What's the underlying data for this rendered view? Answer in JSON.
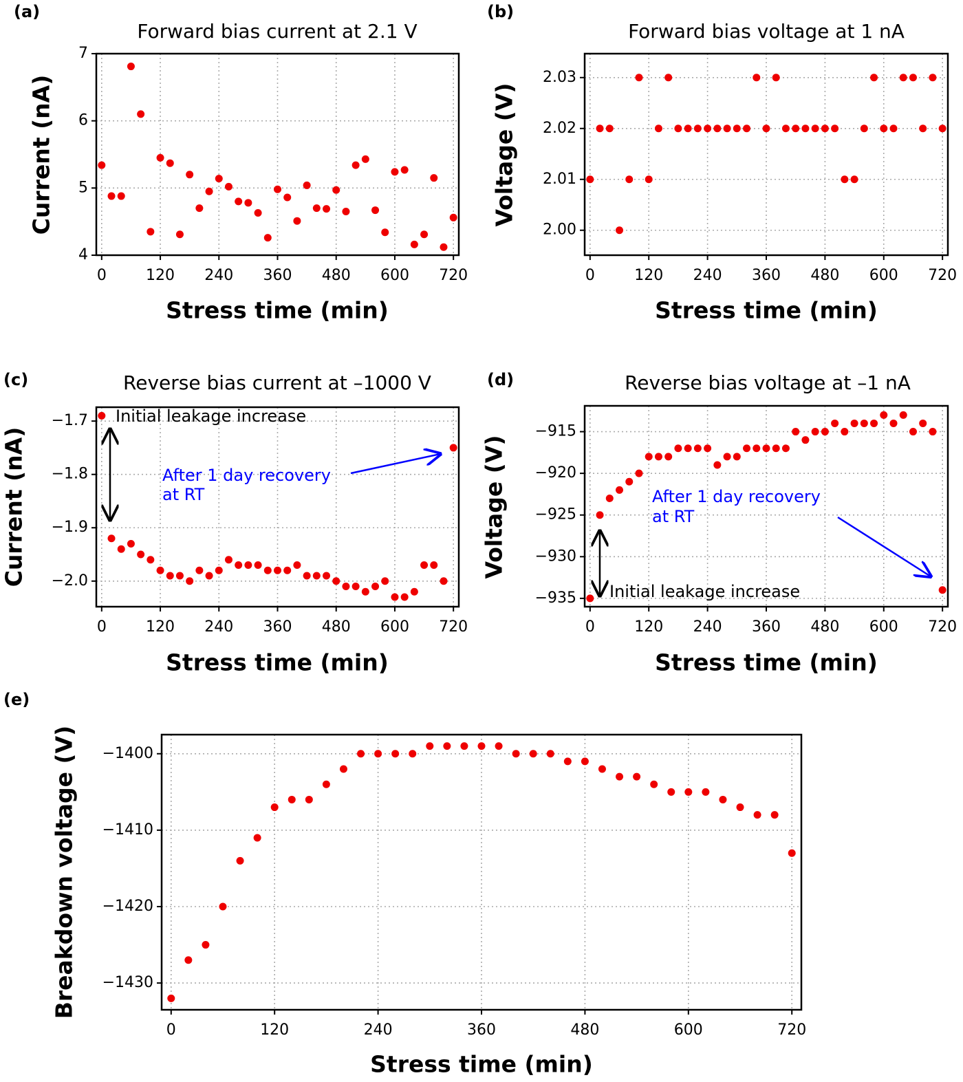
{
  "chart_data": [
    {
      "type": "scatter",
      "panel_label": "(a)",
      "title": "Forward bias current at 2.1 V",
      "xlabel": "Stress time (min)",
      "ylabel": "Current (nA)",
      "color": "#ee0000",
      "grid": true,
      "x": [
        0,
        20,
        40,
        60,
        80,
        100,
        120,
        140,
        160,
        180,
        200,
        220,
        240,
        260,
        280,
        300,
        320,
        340,
        360,
        380,
        400,
        420,
        440,
        460,
        480,
        500,
        520,
        540,
        560,
        580,
        600,
        620,
        640,
        660,
        680,
        700,
        720
      ],
      "values": [
        5.34,
        4.88,
        4.88,
        6.81,
        6.1,
        4.35,
        5.45,
        5.37,
        4.31,
        5.2,
        4.7,
        4.95,
        5.14,
        5.02,
        4.8,
        4.78,
        4.63,
        4.26,
        4.98,
        4.86,
        4.51,
        5.04,
        4.7,
        4.69,
        4.97,
        4.65,
        5.34,
        5.43,
        4.67,
        4.34,
        5.24,
        5.27,
        4.16,
        4.31,
        5.15,
        4.12,
        4.56
      ],
      "xlim": [
        -11,
        731
      ],
      "xticks": [
        0,
        120,
        240,
        360,
        480,
        600,
        720
      ],
      "ylim": [
        4,
        7
      ],
      "yticks": [
        4,
        5,
        6,
        7
      ]
    },
    {
      "type": "scatter",
      "panel_label": "(b)",
      "title": "Forward bias voltage at 1 nA",
      "xlabel": "Stress time (min)",
      "ylabel": "Voltage (V)",
      "color": "#ee0000",
      "grid": true,
      "x": [
        0,
        20,
        40,
        60,
        80,
        100,
        120,
        140,
        160,
        180,
        200,
        220,
        240,
        260,
        280,
        300,
        320,
        340,
        360,
        380,
        400,
        420,
        440,
        460,
        480,
        500,
        520,
        540,
        560,
        580,
        600,
        620,
        640,
        660,
        680,
        700,
        720
      ],
      "values": [
        2.01,
        2.02,
        2.02,
        2.0,
        2.01,
        2.03,
        2.01,
        2.02,
        2.03,
        2.02,
        2.02,
        2.02,
        2.02,
        2.02,
        2.02,
        2.02,
        2.02,
        2.03,
        2.02,
        2.03,
        2.02,
        2.02,
        2.02,
        2.02,
        2.02,
        2.02,
        2.01,
        2.01,
        2.02,
        2.03,
        2.02,
        2.02,
        2.03,
        2.03,
        2.02,
        2.03,
        2.02
      ],
      "xlim": [
        -11,
        731
      ],
      "xticks": [
        0,
        120,
        240,
        360,
        480,
        600,
        720
      ],
      "ylim": [
        1.9951,
        2.0347
      ],
      "yticks": [
        {
          "value": 2.0,
          "label": "2.00"
        },
        2.01,
        2.02,
        2.03
      ]
    },
    {
      "type": "scatter",
      "panel_label": "(c)",
      "title": "Reverse bias current at –1000 V",
      "xlabel": "Stress time (min)",
      "ylabel": "Current (nA)",
      "color": "#ee0000",
      "grid": true,
      "annotations": [
        "Initial leakage increase",
        "After 1 day recovery",
        "at RT"
      ],
      "x": [
        0,
        20,
        40,
        60,
        80,
        100,
        120,
        140,
        160,
        180,
        200,
        220,
        240,
        260,
        280,
        300,
        320,
        340,
        360,
        380,
        400,
        420,
        440,
        460,
        480,
        500,
        520,
        540,
        560,
        580,
        600,
        620,
        640,
        660,
        680,
        700,
        720
      ],
      "values": [
        -1.69,
        -1.92,
        -1.94,
        -1.93,
        -1.95,
        -1.96,
        -1.98,
        -1.99,
        -1.99,
        -2.0,
        -1.98,
        -1.99,
        -1.98,
        -1.96,
        -1.97,
        -1.97,
        -1.97,
        -1.98,
        -1.98,
        -1.98,
        -1.97,
        -1.99,
        -1.99,
        -1.99,
        -2.0,
        -2.01,
        -2.01,
        -2.02,
        -2.01,
        -2.0,
        -2.03,
        -2.03,
        -2.02,
        -1.97,
        -1.97,
        -2.0,
        -1.75
      ],
      "xlim": [
        -11,
        731
      ],
      "xticks": [
        0,
        120,
        240,
        360,
        480,
        600,
        720
      ],
      "ylim": [
        -2.048,
        -1.674
      ],
      "yticks": [
        {
          "value": -2.0,
          "label": "−2.0"
        },
        {
          "value": -1.9,
          "label": "−1.9"
        },
        {
          "value": -1.8,
          "label": "−1.8"
        },
        {
          "value": -1.7,
          "label": "−1.7"
        }
      ]
    },
    {
      "type": "scatter",
      "panel_label": "(d)",
      "title": "Reverse bias voltage at –1 nA",
      "xlabel": "Stress time (min)",
      "ylabel": "Voltage (V)",
      "color": "#ee0000",
      "grid": true,
      "annotations": [
        "Initial leakage increase",
        "After 1 day recovery",
        "at RT"
      ],
      "x": [
        0,
        20,
        40,
        60,
        80,
        100,
        120,
        140,
        160,
        180,
        200,
        220,
        240,
        260,
        280,
        300,
        320,
        340,
        360,
        380,
        400,
        420,
        440,
        460,
        480,
        500,
        520,
        540,
        560,
        580,
        600,
        620,
        640,
        660,
        680,
        700,
        720
      ],
      "values": [
        -935,
        -925,
        -923,
        -922,
        -921,
        -920,
        -918,
        -918,
        -918,
        -917,
        -917,
        -917,
        -917,
        -919,
        -918,
        -918,
        -917,
        -917,
        -917,
        -917,
        -917,
        -915,
        -916,
        -915,
        -915,
        -914,
        -915,
        -914,
        -914,
        -914,
        -913,
        -914,
        -913,
        -915,
        -914,
        -915,
        -934
      ],
      "xlim": [
        -11,
        731
      ],
      "xticks": [
        0,
        120,
        240,
        360,
        480,
        600,
        720
      ],
      "ylim": [
        -936,
        -911.9
      ],
      "yticks": [
        {
          "value": -935,
          "label": "−935"
        },
        {
          "value": -930,
          "label": "−930"
        },
        {
          "value": -925,
          "label": "−925"
        },
        {
          "value": -920,
          "label": "−920"
        },
        {
          "value": -915,
          "label": "−915"
        }
      ]
    },
    {
      "type": "scatter",
      "panel_label": "(e)",
      "xlabel": "Stress time (min)",
      "ylabel": "Breakdown voltage (V)",
      "color": "#ee0000",
      "grid": true,
      "x": [
        0,
        20,
        40,
        60,
        80,
        100,
        120,
        140,
        160,
        180,
        200,
        220,
        240,
        260,
        280,
        300,
        320,
        340,
        360,
        380,
        400,
        420,
        440,
        460,
        480,
        500,
        520,
        540,
        560,
        580,
        600,
        620,
        640,
        660,
        680,
        700,
        720
      ],
      "values": [
        -1432,
        -1427,
        -1425,
        -1420,
        -1414,
        -1411,
        -1407,
        -1406,
        -1406,
        -1404,
        -1402,
        -1400,
        -1400,
        -1400,
        -1400,
        -1399,
        -1399,
        -1399,
        -1399,
        -1399,
        -1400,
        -1400,
        -1400,
        -1401,
        -1401,
        -1402,
        -1403,
        -1403,
        -1404,
        -1405,
        -1405,
        -1405,
        -1406,
        -1407,
        -1408,
        -1408,
        -1413
      ],
      "xlim": [
        -11,
        731
      ],
      "xticks": [
        0,
        120,
        240,
        360,
        480,
        600,
        720
      ],
      "ylim": [
        -1433.5,
        -1397.5
      ],
      "yticks": [
        {
          "value": -1430,
          "label": "−1430"
        },
        {
          "value": -1420,
          "label": "−1420"
        },
        {
          "value": -1410,
          "label": "−1410"
        },
        {
          "value": -1400,
          "label": "−1400"
        }
      ]
    }
  ]
}
